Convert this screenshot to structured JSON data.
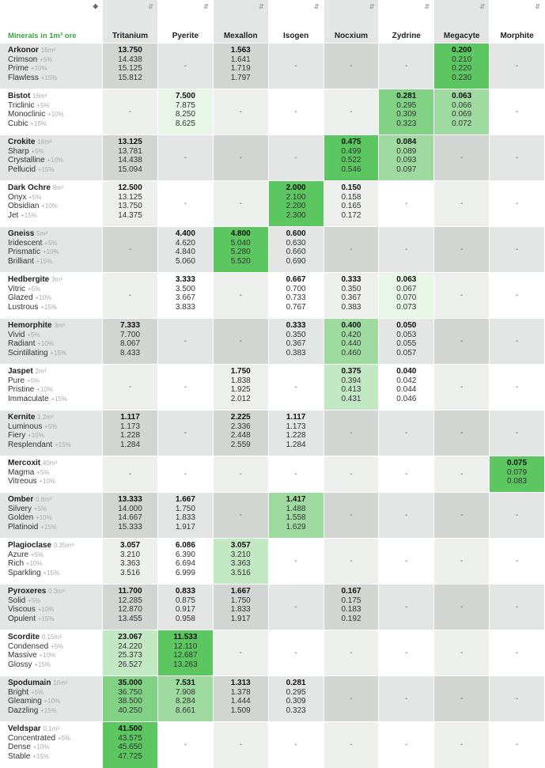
{
  "header": {
    "corner_icon": "plus-sort-icon",
    "title": "Minerals in 1m³ ore",
    "columns": [
      "Tritanium",
      "Pyerite",
      "Mexallon",
      "Isogen",
      "Nocxium",
      "Zydrine",
      "Megacyte",
      "Morphite"
    ]
  },
  "dash": "-",
  "ores": [
    {
      "name": "Arkonor",
      "vol": "16m³",
      "variants": [
        [
          "Crimson",
          "+5%"
        ],
        [
          "Prime",
          "+10%"
        ],
        [
          "Flawless",
          "+15%"
        ]
      ],
      "cells": [
        [
          "13.750",
          "14.438",
          "15.125",
          "15.812"
        ],
        null,
        [
          "1.563",
          "1.641",
          "1.719",
          "1.797"
        ],
        null,
        null,
        null,
        [
          "0.200",
          "0.210",
          "0.220",
          "0.230"
        ],
        null
      ],
      "grades": [
        0,
        0,
        0,
        0,
        0,
        0,
        5,
        0
      ]
    },
    {
      "name": "Bistot",
      "vol": "16m³",
      "variants": [
        [
          "Triclinic",
          "+5%"
        ],
        [
          "Monoclinic",
          "+10%"
        ],
        [
          "Cubic",
          "+15%"
        ]
      ],
      "cells": [
        null,
        [
          "7.500",
          "7.875",
          "8.250",
          "8.625"
        ],
        null,
        null,
        null,
        [
          "0.281",
          "0.295",
          "0.309",
          "0.323"
        ],
        [
          "0.063",
          "0.066",
          "0.069",
          "0.072"
        ],
        null
      ],
      "grades": [
        0,
        1,
        0,
        0,
        0,
        4,
        3,
        0
      ]
    },
    {
      "name": "Crokite",
      "vol": "16m³",
      "variants": [
        [
          "Sharp",
          "+5%"
        ],
        [
          "Crystalline",
          "+10%"
        ],
        [
          "Pellucid",
          "+15%"
        ]
      ],
      "cells": [
        [
          "13.125",
          "13.781",
          "14.438",
          "15.094"
        ],
        null,
        null,
        null,
        [
          "0.475",
          "0.499",
          "0.522",
          "0.546"
        ],
        [
          "0.084",
          "0.089",
          "0.093",
          "0.097"
        ],
        null,
        null
      ],
      "grades": [
        0,
        0,
        0,
        0,
        5,
        3,
        0,
        0
      ]
    },
    {
      "name": "Dark Ochre",
      "vol": "8m³",
      "variants": [
        [
          "Onyx",
          "+5%"
        ],
        [
          "Obsidian",
          "+10%"
        ],
        [
          "Jet",
          "+15%"
        ]
      ],
      "cells": [
        [
          "12.500",
          "13.125",
          "13.750",
          "14.375"
        ],
        null,
        null,
        [
          "2.000",
          "2.100",
          "2.200",
          "2.300"
        ],
        [
          "0.150",
          "0.158",
          "0.165",
          "0.172"
        ],
        null,
        null,
        null
      ],
      "grades": [
        0,
        0,
        0,
        5,
        0,
        0,
        0,
        0
      ]
    },
    {
      "name": "Gneiss",
      "vol": "5m³",
      "variants": [
        [
          "Iridescent",
          "+5%"
        ],
        [
          "Prismatic",
          "+10%"
        ],
        [
          "Brilliant",
          "+15%"
        ]
      ],
      "cells": [
        null,
        [
          "4.400",
          "4.620",
          "4.840",
          "5.060"
        ],
        [
          "4.800",
          "5.040",
          "5.280",
          "5.520"
        ],
        [
          "0.600",
          "0.630",
          "0.660",
          "0.690"
        ],
        null,
        null,
        null,
        null
      ],
      "grades": [
        0,
        0,
        5,
        0,
        0,
        0,
        0,
        0
      ]
    },
    {
      "name": "Hedbergite",
      "vol": "3m³",
      "variants": [
        [
          "Vitric",
          "+5%"
        ],
        [
          "Glazed",
          "+10%"
        ],
        [
          "Lustrous",
          "+15%"
        ]
      ],
      "cells": [
        null,
        [
          "3.333",
          "3.500",
          "3.667",
          "3.833"
        ],
        null,
        [
          "0.667",
          "0.700",
          "0.733",
          "0.767"
        ],
        [
          "0.333",
          "0.350",
          "0.367",
          "0.383"
        ],
        [
          "0.063",
          "0.067",
          "0.070",
          "0.073"
        ],
        null,
        null
      ],
      "grades": [
        0,
        0,
        0,
        0,
        0,
        1,
        0,
        0
      ]
    },
    {
      "name": "Hemorphite",
      "vol": "3m³",
      "variants": [
        [
          "Vivid",
          "+5%"
        ],
        [
          "Radiant",
          "+10%"
        ],
        [
          "Scintillating",
          "+15%"
        ]
      ],
      "cells": [
        [
          "7.333",
          "7.700",
          "8.067",
          "8.433"
        ],
        null,
        null,
        [
          "0.333",
          "0.350",
          "0.367",
          "0.383"
        ],
        [
          "0.400",
          "0.420",
          "0.440",
          "0.460"
        ],
        [
          "0.050",
          "0.053",
          "0.055",
          "0.057"
        ],
        null,
        null
      ],
      "grades": [
        0,
        0,
        0,
        0,
        3,
        0,
        0,
        0
      ]
    },
    {
      "name": "Jaspet",
      "vol": "2m³",
      "variants": [
        [
          "Pure",
          "+5%"
        ],
        [
          "Pristine",
          "+10%"
        ],
        [
          "Immaculate",
          "+15%"
        ]
      ],
      "cells": [
        null,
        null,
        [
          "1.750",
          "1.838",
          "1.925",
          "2.012"
        ],
        null,
        [
          "0.375",
          "0.394",
          "0.413",
          "0.431"
        ],
        [
          "0.040",
          "0.042",
          "0.044",
          "0.046"
        ],
        null,
        null
      ],
      "grades": [
        0,
        0,
        0,
        0,
        2,
        0,
        0,
        0
      ]
    },
    {
      "name": "Kernite",
      "vol": "1.2m³",
      "variants": [
        [
          "Luminous",
          "+5%"
        ],
        [
          "Fiery",
          "+10%"
        ],
        [
          "Resplendant",
          "+15%"
        ]
      ],
      "cells": [
        [
          "1.117",
          "1.173",
          "1.228",
          "1.284"
        ],
        null,
        [
          "2.225",
          "2.336",
          "2.448",
          "2.559"
        ],
        [
          "1.117",
          "1.173",
          "1.228",
          "1.284"
        ],
        null,
        null,
        null,
        null
      ],
      "grades": [
        0,
        0,
        0,
        0,
        0,
        0,
        0,
        0
      ]
    },
    {
      "name": "Mercoxit",
      "vol": "40m³",
      "variants": [
        [
          "Magma",
          "+5%"
        ],
        [
          "Vitreous",
          "+10%"
        ]
      ],
      "cells": [
        null,
        null,
        null,
        null,
        null,
        null,
        null,
        [
          "0.075",
          "0.079",
          "0.083"
        ]
      ],
      "grades": [
        0,
        0,
        0,
        0,
        0,
        0,
        0,
        5
      ]
    },
    {
      "name": "Omber",
      "vol": "0.6m³",
      "variants": [
        [
          "Silvery",
          "+5%"
        ],
        [
          "Golden",
          "+10%"
        ],
        [
          "Platinoid",
          "+15%"
        ]
      ],
      "cells": [
        [
          "13.333",
          "14.000",
          "14.667",
          "15.333"
        ],
        [
          "1.667",
          "1.750",
          "1.833",
          "1.917"
        ],
        null,
        [
          "1.417",
          "1.488",
          "1.558",
          "1.629"
        ],
        null,
        null,
        null,
        null
      ],
      "grades": [
        0,
        0,
        0,
        3,
        0,
        0,
        0,
        0
      ]
    },
    {
      "name": "Plagioclase",
      "vol": "0.35m³",
      "variants": [
        [
          "Azure",
          "+5%"
        ],
        [
          "Rich",
          "+10%"
        ],
        [
          "Sparkling",
          "+15%"
        ]
      ],
      "cells": [
        [
          "3.057",
          "3.210",
          "3.363",
          "3.516"
        ],
        [
          "6.086",
          "6.390",
          "6.694",
          "6.999"
        ],
        [
          "3.057",
          "3.210",
          "3.363",
          "3.516"
        ],
        null,
        null,
        null,
        null,
        null
      ],
      "grades": [
        0,
        0,
        2,
        0,
        0,
        0,
        0,
        0
      ]
    },
    {
      "name": "Pyroxeres",
      "vol": "0.3m³",
      "variants": [
        [
          "Solid",
          "+5%"
        ],
        [
          "Viscous",
          "+10%"
        ],
        [
          "Opulent",
          "+15%"
        ]
      ],
      "cells": [
        [
          "11.700",
          "12.285",
          "12.870",
          "13.455"
        ],
        [
          "0.833",
          "0.875",
          "0.917",
          "0.958"
        ],
        [
          "1.667",
          "1.750",
          "1.833",
          "1.917"
        ],
        null,
        [
          "0.167",
          "0.175",
          "0.183",
          "0.192"
        ],
        null,
        null,
        null
      ],
      "grades": [
        0,
        0,
        0,
        0,
        0,
        0,
        0,
        0
      ]
    },
    {
      "name": "Scordite",
      "vol": "0.15m³",
      "variants": [
        [
          "Condensed",
          "+5%"
        ],
        [
          "Massive",
          "+10%"
        ],
        [
          "Glossy",
          "+15%"
        ]
      ],
      "cells": [
        [
          "23.067",
          "24.220",
          "25.373",
          "26.527"
        ],
        [
          "11.533",
          "12.110",
          "12.687",
          "13.263"
        ],
        null,
        null,
        null,
        null,
        null,
        null
      ],
      "grades": [
        2,
        5,
        0,
        0,
        0,
        0,
        0,
        0
      ]
    },
    {
      "name": "Spodumain",
      "vol": "16m³",
      "variants": [
        [
          "Bright",
          "+5%"
        ],
        [
          "Gleaming",
          "+10%"
        ],
        [
          "Dazzling",
          "+15%"
        ]
      ],
      "cells": [
        [
          "35.000",
          "36.750",
          "38.500",
          "40.250"
        ],
        [
          "7.531",
          "7.908",
          "8.284",
          "8.661"
        ],
        [
          "1.313",
          "1.378",
          "1.444",
          "1.509"
        ],
        [
          "0.281",
          "0.295",
          "0.309",
          "0.323"
        ],
        null,
        null,
        null,
        null
      ],
      "grades": [
        4,
        3,
        0,
        0,
        0,
        0,
        0,
        0
      ]
    },
    {
      "name": "Veldspar",
      "vol": "0.1m³",
      "variants": [
        [
          "Concentrated",
          "+5%"
        ],
        [
          "Dense",
          "+10%"
        ],
        [
          "Stable",
          "+15%"
        ]
      ],
      "cells": [
        [
          "41.500",
          "43.575",
          "45.650",
          "47.725"
        ],
        null,
        null,
        null,
        null,
        null,
        null,
        null
      ],
      "grades": [
        5,
        0,
        0,
        0,
        0,
        0,
        0,
        0
      ]
    }
  ]
}
